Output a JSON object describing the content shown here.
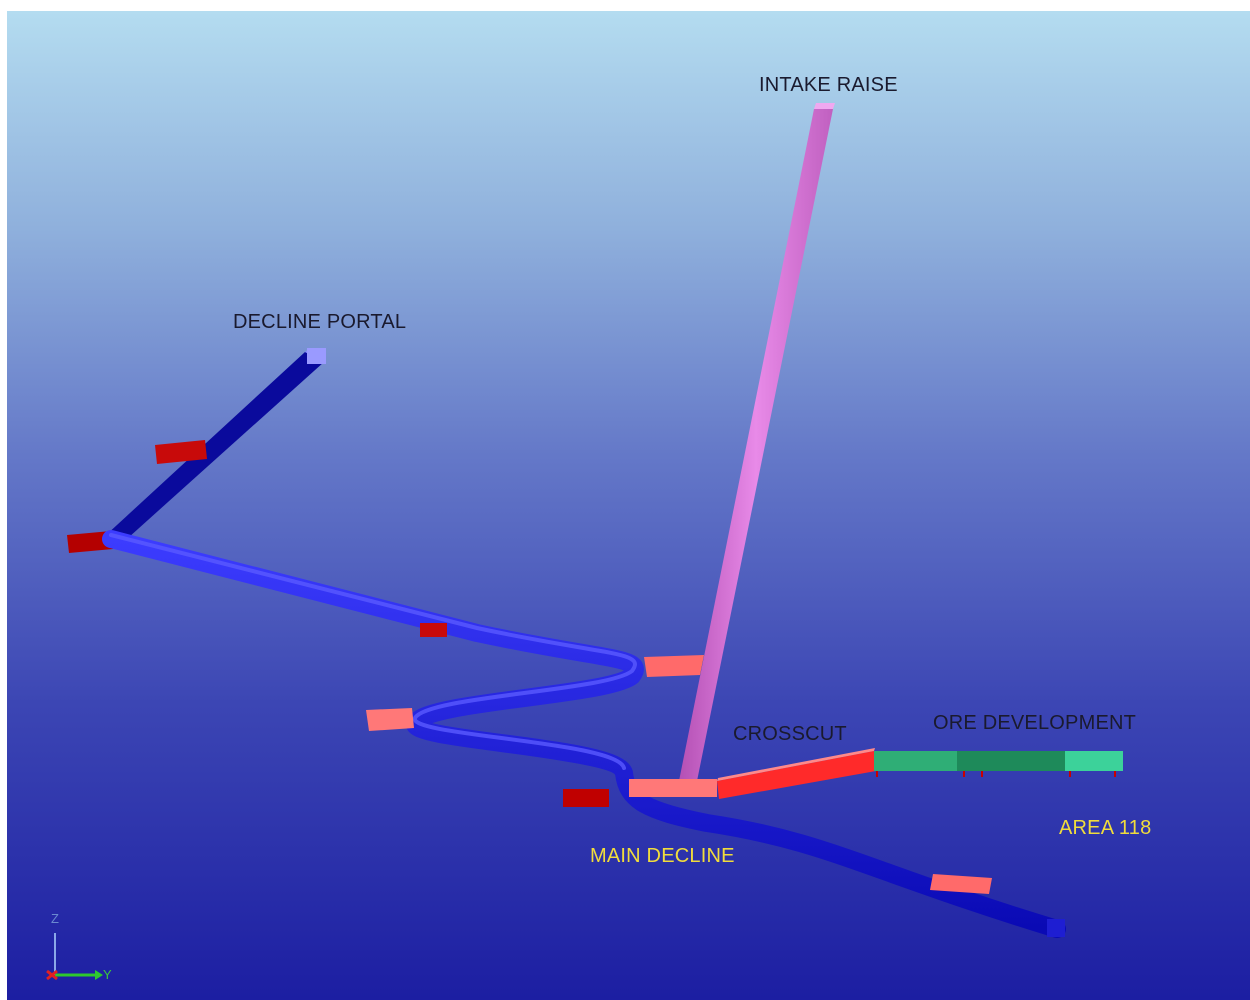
{
  "viewport": {
    "background_top": "#b4dcf0",
    "background_bottom": "#1c1ea2"
  },
  "labels": {
    "intake_raise": "INTAKE RAISE",
    "decline_portal": "DECLINE PORTAL",
    "crosscut": "CROSSCUT",
    "ore_development": "ORE DEVELOPMENT",
    "area": "AREA 118",
    "main_decline": "MAIN DECLINE"
  },
  "colors": {
    "decline": "#1414e6",
    "decline_dark": "#0a0a8c",
    "intake_raise": "#d264d2",
    "crosscut": "#ff3c3c",
    "stub_dark": "#c80000",
    "stub_light": "#ff7878",
    "ore_development": "#2d9e6e",
    "label_dark": "#1a1a2e",
    "label_yellow": "#f0dc3c"
  },
  "axis_triad": {
    "z_label": "Z",
    "y_label": "Y",
    "icon": "axis-triad-icon"
  }
}
